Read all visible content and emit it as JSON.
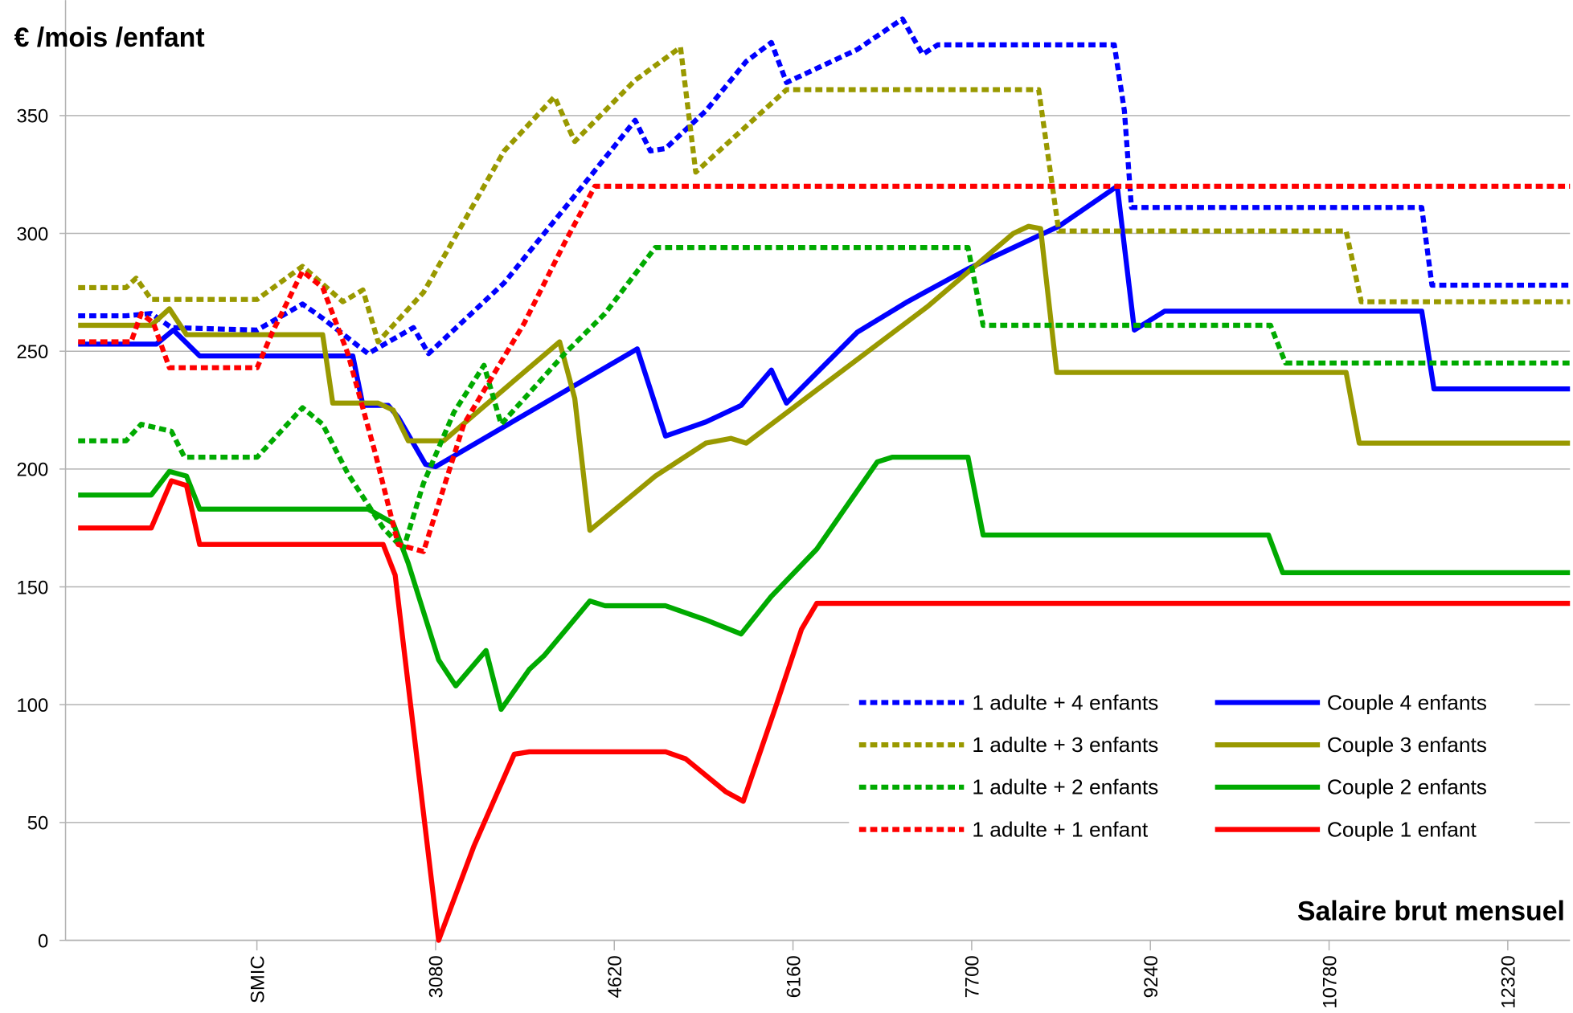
{
  "chart_data": {
    "type": "line",
    "y_label": "€ /mois /enfant",
    "x_label": "Salaire brut mensuel",
    "xlim": [
      -109,
      12856
    ],
    "ylim": [
      0,
      399
    ],
    "xticks": [
      {
        "value": 1540,
        "label": "SMIC"
      },
      3080,
      4620,
      6160,
      7700,
      9240,
      10780,
      12320
    ],
    "yticks": [
      0,
      50,
      100,
      150,
      200,
      250,
      300,
      350
    ],
    "grid": true,
    "legend": "lower right",
    "series": [
      {
        "name": "1 adulte + 4 enfants",
        "color": "#0000ff",
        "dashed": true,
        "x": [
          0,
          412,
          630,
          803,
          1542,
          1933,
          2107,
          2498,
          2889,
          3019,
          3671,
          4279,
          4800,
          4931,
          5061,
          5409,
          5757,
          5974,
          6104,
          6712,
          7103,
          7277,
          7408,
          8929,
          9016,
          9077,
          11579,
          11666,
          12856
        ],
        "values": [
          265,
          265,
          266,
          260,
          259,
          270,
          264,
          249,
          260,
          249,
          279,
          316,
          348,
          335,
          336,
          352,
          373,
          381,
          364,
          378,
          391,
          376,
          380,
          380,
          352,
          311,
          311,
          278,
          278
        ]
      },
      {
        "name": "Couple 4 enfants",
        "color": "#0000ff",
        "dashed": false,
        "x": [
          0,
          673,
          821,
          1047,
          2367,
          2454,
          2672,
          2758,
          2993,
          3080,
          4818,
          5061,
          5409,
          5713,
          5974,
          6104,
          6712,
          7147,
          7668,
          8450,
          8954,
          9102,
          9363,
          11579,
          11684,
          12856
        ],
        "values": [
          253,
          253,
          259,
          248,
          248,
          227,
          227,
          222,
          202,
          201,
          251,
          214,
          220,
          227,
          242,
          228,
          258,
          271,
          285,
          303,
          320,
          259,
          267,
          267,
          234,
          234
        ]
      },
      {
        "name": "1 adulte + 3 enfants",
        "color": "#999900",
        "dashed": true,
        "x": [
          0,
          412,
          499,
          630,
          1542,
          1933,
          2281,
          2454,
          2585,
          2976,
          3671,
          4105,
          4279,
          4800,
          5191,
          5322,
          6104,
          8277,
          8450,
          10927,
          11057,
          12856
        ],
        "values": [
          277,
          277,
          281,
          272,
          272,
          286,
          271,
          276,
          254,
          275,
          335,
          358,
          339,
          365,
          379,
          326,
          361,
          361,
          301,
          301,
          271,
          271
        ]
      },
      {
        "name": "Couple 3 enfants",
        "color": "#999900",
        "dashed": false,
        "x": [
          0,
          630,
          786,
          934,
          2107,
          2194,
          2585,
          2715,
          2845,
          3150,
          4149,
          4279,
          4410,
          4974,
          5409,
          5626,
          5757,
          7321,
          8059,
          8190,
          8294,
          8433,
          10927,
          11040,
          12856
        ],
        "values": [
          261,
          261,
          268,
          257,
          257,
          228,
          228,
          225,
          212,
          212,
          254,
          230,
          174,
          197,
          211,
          213,
          211,
          269,
          300,
          303,
          302,
          241,
          241,
          211,
          211
        ]
      },
      {
        "name": "1 adulte + 2 enfants",
        "color": "#00aa00",
        "dashed": true,
        "x": [
          0,
          412,
          543,
          803,
          916,
          1542,
          1933,
          2107,
          2324,
          2628,
          2802,
          2976,
          3237,
          3497,
          3645,
          4192,
          4540,
          4974,
          7668,
          7799,
          10275,
          10405,
          12856
        ],
        "values": [
          212,
          212,
          219,
          216,
          205,
          205,
          226,
          219,
          198,
          175,
          166,
          194,
          224,
          244,
          219,
          249,
          266,
          294,
          294,
          261,
          261,
          245,
          245
        ]
      },
      {
        "name": "Couple 2 enfants",
        "color": "#00aa00",
        "dashed": false,
        "x": [
          0,
          630,
          786,
          934,
          1047,
          2498,
          2715,
          2845,
          3106,
          3254,
          3515,
          3645,
          3888,
          4019,
          4410,
          4540,
          5061,
          5409,
          5713,
          5974,
          6365,
          6886,
          7016,
          7668,
          7799,
          10258,
          10380,
          12856
        ],
        "values": [
          189,
          189,
          199,
          197,
          183,
          183,
          177,
          160,
          119,
          108,
          123,
          98,
          115,
          121,
          144,
          142,
          142,
          136,
          130,
          146,
          166,
          203,
          205,
          205,
          172,
          172,
          156,
          156
        ]
      },
      {
        "name": "1 adulte + 1 enfant",
        "color": "#ff0000",
        "dashed": true,
        "x": [
          0,
          456,
          543,
          648,
          786,
          1542,
          1673,
          1933,
          2107,
          2324,
          2559,
          2758,
          2976,
          3323,
          3845,
          4192,
          4453,
          12856
        ],
        "values": [
          254,
          254,
          266,
          262,
          243,
          243,
          258,
          284,
          277,
          249,
          207,
          168,
          165,
          219,
          262,
          296,
          320,
          320
        ]
      },
      {
        "name": "Couple 1 enfant",
        "color": "#ff0000",
        "dashed": false,
        "x": [
          0,
          630,
          803,
          934,
          1047,
          2628,
          2732,
          3106,
          3410,
          3758,
          3888,
          5061,
          5235,
          5409,
          5583,
          5731,
          6017,
          6234,
          6365,
          12856
        ],
        "values": [
          175,
          175,
          195,
          193,
          168,
          168,
          155,
          0,
          40,
          79,
          80,
          80,
          77,
          70,
          63,
          59,
          100,
          132,
          143,
          143
        ]
      }
    ]
  }
}
